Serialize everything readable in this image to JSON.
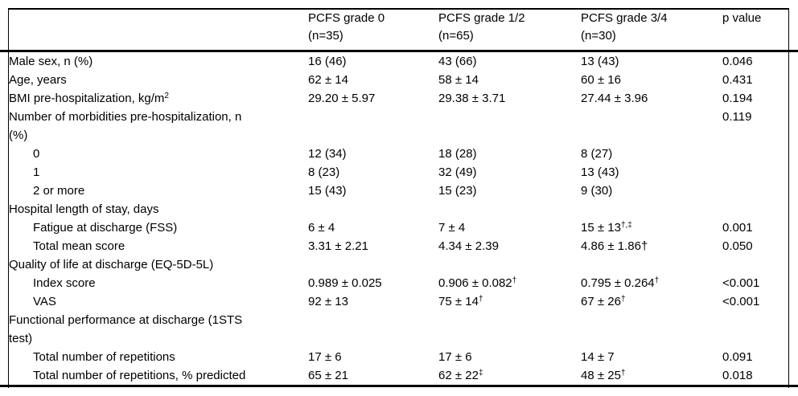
{
  "colors": {
    "background": "#ffffff",
    "text": "#000000",
    "rule": "#000000"
  },
  "table": {
    "columns": [
      {
        "line1": "PCFS grade 0",
        "line2": "(n=35)"
      },
      {
        "line1": "PCFS grade 1/2",
        "line2": "(n=65)"
      },
      {
        "line1": "PCFS grade 3/4",
        "line2": "(n=30)"
      },
      {
        "line1": "p value",
        "line2": ""
      }
    ],
    "rows": [
      {
        "label": "Male sex, n (%)",
        "indent": 0,
        "cells": [
          {
            "v": "16 (46)"
          },
          {
            "v": "43 (66)"
          },
          {
            "v": "13 (43)"
          },
          {
            "v": "0.046"
          }
        ]
      },
      {
        "label": "Age, years",
        "indent": 0,
        "cells": [
          {
            "v": "62 ± 14"
          },
          {
            "v": "58 ± 14"
          },
          {
            "v": "60 ± 16"
          },
          {
            "v": "0.431"
          }
        ]
      },
      {
        "label": "BMI pre-hospitalization, kg/m",
        "label_sup": "2",
        "indent": 0,
        "cells": [
          {
            "v": "29.20 ± 5.97"
          },
          {
            "v": "29.38 ± 3.71"
          },
          {
            "v": "27.44 ± 3.96"
          },
          {
            "v": "0.194"
          }
        ]
      },
      {
        "label": "Number of morbidities pre-hospitalization, n",
        "label2": "(%)",
        "indent": 0,
        "cells": [
          {
            "v": ""
          },
          {
            "v": ""
          },
          {
            "v": ""
          },
          {
            "v": "0.119"
          }
        ]
      },
      {
        "label": "0",
        "indent": 1,
        "cells": [
          {
            "v": "12 (34)"
          },
          {
            "v": "18 (28)"
          },
          {
            "v": "8 (27)"
          },
          {
            "v": ""
          }
        ]
      },
      {
        "label": "1",
        "indent": 1,
        "cells": [
          {
            "v": "8 (23)"
          },
          {
            "v": "32 (49)"
          },
          {
            "v": "13 (43)"
          },
          {
            "v": ""
          }
        ]
      },
      {
        "label": "2 or more",
        "indent": 1,
        "cells": [
          {
            "v": "15 (43)"
          },
          {
            "v": "15 (23)"
          },
          {
            "v": "9 (30)"
          },
          {
            "v": ""
          }
        ]
      },
      {
        "label": "Hospital length of stay, days",
        "indent": 0,
        "cells": [
          {
            "v": ""
          },
          {
            "v": ""
          },
          {
            "v": ""
          },
          {
            "v": ""
          }
        ]
      },
      {
        "label": "Fatigue at discharge (FSS)",
        "indent": 1,
        "cells": [
          {
            "v": "6 ± 4"
          },
          {
            "v": "7 ± 4"
          },
          {
            "v": "15 ± 13",
            "sup": "†,‡"
          },
          {
            "v": "0.001"
          }
        ]
      },
      {
        "label": "Total mean score",
        "indent": 1,
        "cells": [
          {
            "v": "3.31 ± 2.21"
          },
          {
            "v": "4.34 ± 2.39"
          },
          {
            "v": "4.86 ± 1.86†"
          },
          {
            "v": "0.050"
          }
        ]
      },
      {
        "label": "Quality of life at discharge (EQ-5D-5L)",
        "indent": 0,
        "cells": [
          {
            "v": ""
          },
          {
            "v": ""
          },
          {
            "v": ""
          },
          {
            "v": ""
          }
        ]
      },
      {
        "label": "Index score",
        "indent": 1,
        "cells": [
          {
            "v": "0.989 ± 0.025"
          },
          {
            "v": "0.906 ± 0.082",
            "sup": "†"
          },
          {
            "v": "0.795 ± 0.264",
            "sup": "†"
          },
          {
            "v": "<0.001"
          }
        ]
      },
      {
        "label": "VAS",
        "indent": 1,
        "cells": [
          {
            "v": "92 ± 13"
          },
          {
            "v": "75 ± 14",
            "sup": "†"
          },
          {
            "v": "67 ± 26",
            "sup": "†"
          },
          {
            "v": "<0.001"
          }
        ]
      },
      {
        "label": "Functional performance at discharge (1STS",
        "label2": "test)",
        "indent": 0,
        "cells": [
          {
            "v": ""
          },
          {
            "v": ""
          },
          {
            "v": ""
          },
          {
            "v": ""
          }
        ]
      },
      {
        "label": "Total number of repetitions",
        "indent": 1,
        "cells": [
          {
            "v": "17 ± 6"
          },
          {
            "v": "17 ± 6"
          },
          {
            "v": "14 ± 7"
          },
          {
            "v": "0.091"
          }
        ]
      },
      {
        "label": "Total number of repetitions, % predicted",
        "indent": 1,
        "cells": [
          {
            "v": "65 ± 21"
          },
          {
            "v": "62 ± 22",
            "sup": "‡"
          },
          {
            "v": "48 ± 25",
            "sup": "†"
          },
          {
            "v": "0.018"
          }
        ]
      }
    ]
  }
}
